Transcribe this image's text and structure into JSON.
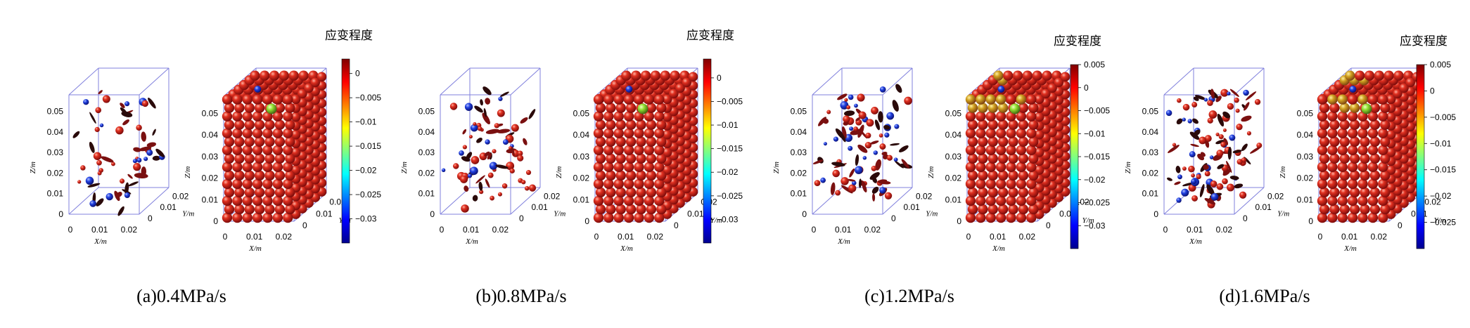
{
  "panels": [
    {
      "caption": "(a)0.4MPa/s",
      "colorbar": {
        "title": "应变程度",
        "ticks": [
          "0",
          "-0.005",
          "-0.01",
          "-0.015",
          "-0.02",
          "-0.025",
          "-0.03"
        ],
        "min": -0.035,
        "max": 0.003
      }
    },
    {
      "caption": "(b)0.8MPa/s",
      "colorbar": {
        "title": "应变程度",
        "ticks": [
          "0",
          "-0.005",
          "-0.01",
          "-0.015",
          "-0.02",
          "-0.025",
          "-0.03"
        ],
        "min": -0.035,
        "max": 0.004
      }
    },
    {
      "caption": "(c)1.2MPa/s",
      "colorbar": {
        "title": "应变程度",
        "ticks": [
          "0.005",
          "0",
          "-0.005",
          "-0.01",
          "-0.015",
          "-0.02",
          "-0.025",
          "-0.03"
        ],
        "min": -0.035,
        "max": 0.005
      }
    },
    {
      "caption": "(d)1.6MPa/s",
      "colorbar": {
        "title": "应变程度",
        "ticks": [
          "0.005",
          "0",
          "-0.005",
          "-0.01",
          "-0.015",
          "-0.02",
          "-0.025"
        ],
        "min": -0.03,
        "max": 0.005
      }
    }
  ],
  "axes": {
    "z_ticks": [
      "0",
      "0.01",
      "0.02",
      "0.03",
      "0.04",
      "0.05"
    ],
    "x_ticks": [
      "0",
      "0.01",
      "0.02"
    ],
    "y_ticks": [
      "0",
      "0.01",
      "0.02"
    ],
    "z_label": "Z/m",
    "x_label": "X/m",
    "y_label": "Y/m"
  },
  "colors": {
    "sphere_red": "#c81e1e",
    "sphere_blue": "#1e3cdc",
    "box_line": "#8080dd"
  }
}
